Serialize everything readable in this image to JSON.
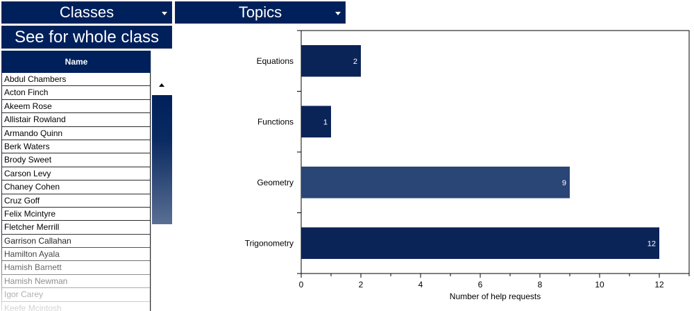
{
  "controls": {
    "classes_label": "Classes",
    "topics_label": "Topics",
    "whole_class_label": "See for whole class"
  },
  "table": {
    "header": "Name",
    "rows": [
      "Abdul Chambers",
      "Acton Finch",
      "Akeem Rose",
      "Allistair Rowland",
      "Armando Quinn",
      "Berk Waters",
      "Brody Sweet",
      "Carson Levy",
      "Chaney Cohen",
      "Cruz Goff",
      "Felix Mcintyre",
      "Fletcher Merrill",
      "Garrison Callahan",
      "Hamilton Ayala",
      "Hamish Barnett",
      "Hamish Newman",
      "Igor Carey",
      "Keefe Mcintosh"
    ]
  },
  "colors": {
    "navy": "#00205b",
    "bar": "#0b2458",
    "bar_light": "#2a4677"
  },
  "chart_data": {
    "type": "bar",
    "orientation": "horizontal",
    "categories": [
      "Equations",
      "Functions",
      "Geometry",
      "Trigonometry"
    ],
    "values": [
      2,
      1,
      9,
      12
    ],
    "data_labels": [
      "2",
      "1",
      "9",
      "12"
    ],
    "xlabel": "Number of help requests",
    "ylabel": "",
    "xlim": [
      0,
      13
    ],
    "xticks": [
      "0",
      "2",
      "4",
      "6",
      "8",
      "10",
      "12"
    ],
    "grid": false,
    "legend": "none"
  }
}
